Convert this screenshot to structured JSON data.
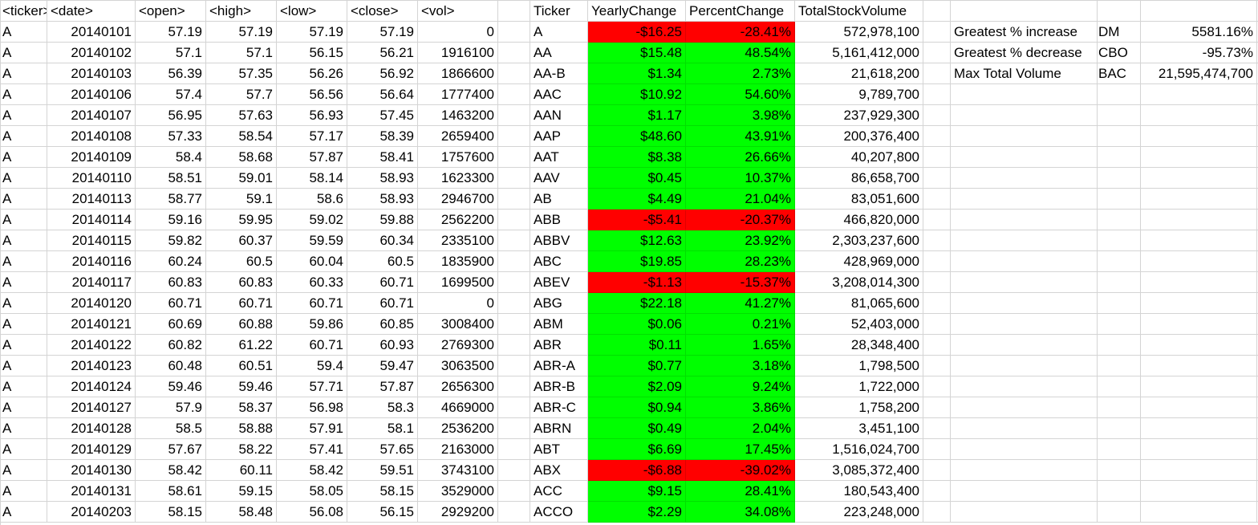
{
  "columns": [
    "<ticker>",
    "<date>",
    "<open>",
    "<high>",
    "<low>",
    "<close>",
    "<vol>",
    "",
    "Ticker",
    "YearlyChange",
    "PercentChange",
    "TotalStockVolume",
    "",
    "",
    "",
    "",
    ""
  ],
  "raw_rows": [
    [
      "A",
      "20140101",
      "57.19",
      "57.19",
      "57.19",
      "57.19",
      "0"
    ],
    [
      "A",
      "20140102",
      "57.1",
      "57.1",
      "56.15",
      "56.21",
      "1916100"
    ],
    [
      "A",
      "20140103",
      "56.39",
      "57.35",
      "56.26",
      "56.92",
      "1866600"
    ],
    [
      "A",
      "20140106",
      "57.4",
      "57.7",
      "56.56",
      "56.64",
      "1777400"
    ],
    [
      "A",
      "20140107",
      "56.95",
      "57.63",
      "56.93",
      "57.45",
      "1463200"
    ],
    [
      "A",
      "20140108",
      "57.33",
      "58.54",
      "57.17",
      "58.39",
      "2659400"
    ],
    [
      "A",
      "20140109",
      "58.4",
      "58.68",
      "57.87",
      "58.41",
      "1757600"
    ],
    [
      "A",
      "20140110",
      "58.51",
      "59.01",
      "58.14",
      "58.93",
      "1623300"
    ],
    [
      "A",
      "20140113",
      "58.77",
      "59.1",
      "58.6",
      "58.93",
      "2946700"
    ],
    [
      "A",
      "20140114",
      "59.16",
      "59.95",
      "59.02",
      "59.88",
      "2562200"
    ],
    [
      "A",
      "20140115",
      "59.82",
      "60.37",
      "59.59",
      "60.34",
      "2335100"
    ],
    [
      "A",
      "20140116",
      "60.24",
      "60.5",
      "60.04",
      "60.5",
      "1835900"
    ],
    [
      "A",
      "20140117",
      "60.83",
      "60.83",
      "60.33",
      "60.71",
      "1699500"
    ],
    [
      "A",
      "20140120",
      "60.71",
      "60.71",
      "60.71",
      "60.71",
      "0"
    ],
    [
      "A",
      "20140121",
      "60.69",
      "60.88",
      "59.86",
      "60.85",
      "3008400"
    ],
    [
      "A",
      "20140122",
      "60.82",
      "61.22",
      "60.71",
      "60.93",
      "2769300"
    ],
    [
      "A",
      "20140123",
      "60.48",
      "60.51",
      "59.4",
      "59.47",
      "3063500"
    ],
    [
      "A",
      "20140124",
      "59.46",
      "59.46",
      "57.71",
      "57.87",
      "2656300"
    ],
    [
      "A",
      "20140127",
      "57.9",
      "58.37",
      "56.98",
      "58.3",
      "4669000"
    ],
    [
      "A",
      "20140128",
      "58.5",
      "58.88",
      "57.91",
      "58.1",
      "2536200"
    ],
    [
      "A",
      "20140129",
      "57.67",
      "58.22",
      "57.41",
      "57.65",
      "2163000"
    ],
    [
      "A",
      "20140130",
      "58.42",
      "60.11",
      "58.42",
      "59.51",
      "3743100"
    ],
    [
      "A",
      "20140131",
      "58.61",
      "59.15",
      "58.05",
      "58.15",
      "3529000"
    ],
    [
      "A",
      "20140203",
      "58.15",
      "58.48",
      "56.08",
      "56.15",
      "2929200"
    ]
  ],
  "summary_rows": [
    {
      "ticker": "A",
      "change": "-$16.25",
      "percent": "-28.41%",
      "volume": "572,978,100",
      "status": "negative"
    },
    {
      "ticker": "AA",
      "change": "$15.48",
      "percent": "48.54%",
      "volume": "5,161,412,000",
      "status": "positive"
    },
    {
      "ticker": "AA-B",
      "change": "$1.34",
      "percent": "2.73%",
      "volume": "21,618,200",
      "status": "positive"
    },
    {
      "ticker": "AAC",
      "change": "$10.92",
      "percent": "54.60%",
      "volume": "9,789,700",
      "status": "positive"
    },
    {
      "ticker": "AAN",
      "change": "$1.17",
      "percent": "3.98%",
      "volume": "237,929,300",
      "status": "positive"
    },
    {
      "ticker": "AAP",
      "change": "$48.60",
      "percent": "43.91%",
      "volume": "200,376,400",
      "status": "positive"
    },
    {
      "ticker": "AAT",
      "change": "$8.38",
      "percent": "26.66%",
      "volume": "40,207,800",
      "status": "positive"
    },
    {
      "ticker": "AAV",
      "change": "$0.45",
      "percent": "10.37%",
      "volume": "86,658,700",
      "status": "positive"
    },
    {
      "ticker": "AB",
      "change": "$4.49",
      "percent": "21.04%",
      "volume": "83,051,600",
      "status": "positive"
    },
    {
      "ticker": "ABB",
      "change": "-$5.41",
      "percent": "-20.37%",
      "volume": "466,820,000",
      "status": "negative"
    },
    {
      "ticker": "ABBV",
      "change": "$12.63",
      "percent": "23.92%",
      "volume": "2,303,237,600",
      "status": "positive"
    },
    {
      "ticker": "ABC",
      "change": "$19.85",
      "percent": "28.23%",
      "volume": "428,969,000",
      "status": "positive"
    },
    {
      "ticker": "ABEV",
      "change": "-$1.13",
      "percent": "-15.37%",
      "volume": "3,208,014,300",
      "status": "negative"
    },
    {
      "ticker": "ABG",
      "change": "$22.18",
      "percent": "41.27%",
      "volume": "81,065,600",
      "status": "positive"
    },
    {
      "ticker": "ABM",
      "change": "$0.06",
      "percent": "0.21%",
      "volume": "52,403,000",
      "status": "positive"
    },
    {
      "ticker": "ABR",
      "change": "$0.11",
      "percent": "1.65%",
      "volume": "28,348,400",
      "status": "positive"
    },
    {
      "ticker": "ABR-A",
      "change": "$0.77",
      "percent": "3.18%",
      "volume": "1,798,500",
      "status": "positive"
    },
    {
      "ticker": "ABR-B",
      "change": "$2.09",
      "percent": "9.24%",
      "volume": "1,722,000",
      "status": "positive"
    },
    {
      "ticker": "ABR-C",
      "change": "$0.94",
      "percent": "3.86%",
      "volume": "1,758,200",
      "status": "positive"
    },
    {
      "ticker": "ABRN",
      "change": "$0.49",
      "percent": "2.04%",
      "volume": "3,451,100",
      "status": "positive"
    },
    {
      "ticker": "ABT",
      "change": "$6.69",
      "percent": "17.45%",
      "volume": "1,516,024,700",
      "status": "positive"
    },
    {
      "ticker": "ABX",
      "change": "-$6.88",
      "percent": "-39.02%",
      "volume": "3,085,372,400",
      "status": "negative"
    },
    {
      "ticker": "ACC",
      "change": "$9.15",
      "percent": "28.41%",
      "volume": "180,543,400",
      "status": "positive"
    },
    {
      "ticker": "ACCO",
      "change": "$2.29",
      "percent": "34.08%",
      "volume": "223,248,000",
      "status": "positive"
    }
  ],
  "greatest": [
    {
      "label": "Greatest % increase",
      "ticker": "DM",
      "value": "5581.16%"
    },
    {
      "label": "Greatest % decrease",
      "ticker": "CBO",
      "value": "-95.73%"
    },
    {
      "label": "Max Total Volume",
      "ticker": "BAC",
      "value": "21,595,474,700"
    }
  ],
  "colors": {
    "positive": "#00ff00",
    "negative": "#ff0000",
    "gridline": "#d4d4d4"
  }
}
